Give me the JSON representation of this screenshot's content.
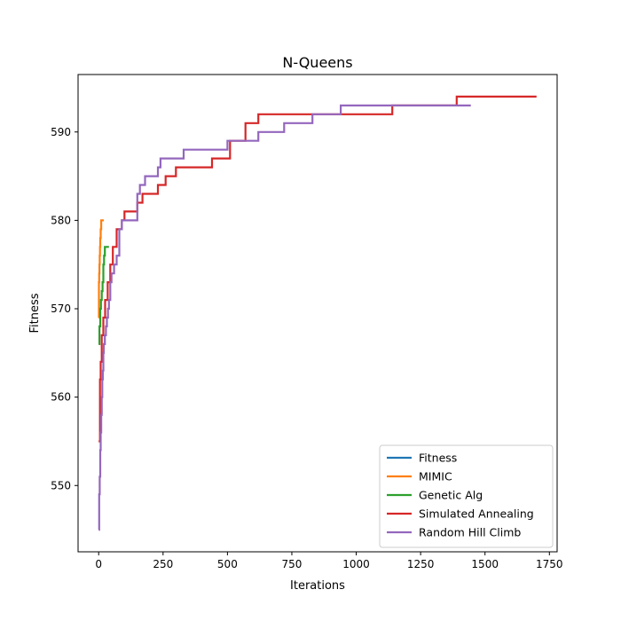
{
  "chart_data": {
    "type": "line",
    "title": "N-Queens",
    "xlabel": "Iterations",
    "ylabel": "Fitness",
    "xlim": [
      -80,
      1780
    ],
    "ylim": [
      542.5,
      596.5
    ],
    "xticks": [
      0,
      250,
      500,
      750,
      1000,
      1250,
      1500,
      1750
    ],
    "yticks": [
      550,
      560,
      570,
      580,
      590
    ],
    "grid": false,
    "legend_position": "lower-right",
    "series": [
      {
        "name": "Fitness",
        "color": "#1f77b4",
        "x": [],
        "y": []
      },
      {
        "name": "MIMIC",
        "color": "#ff7f0e",
        "x": [
          0,
          1,
          2,
          3,
          4,
          5,
          6,
          7,
          8,
          9,
          10,
          11,
          12,
          13,
          14,
          15,
          16,
          17,
          18,
          19,
          20
        ],
        "y": [
          569,
          573,
          574,
          575,
          576,
          577,
          578,
          578,
          579,
          579,
          580,
          580,
          580,
          580,
          580,
          580,
          580,
          580,
          580,
          580,
          580
        ]
      },
      {
        "name": "Genetic Alg",
        "color": "#2ca02c",
        "x": [
          0,
          3,
          6,
          9,
          12,
          15,
          18,
          21,
          24,
          27,
          30,
          33,
          36,
          40
        ],
        "y": [
          566,
          568,
          570,
          571,
          572,
          573,
          575,
          576,
          577,
          577,
          577,
          577,
          577,
          577
        ]
      },
      {
        "name": "Simulated Annealing",
        "color": "#d62728",
        "x": [
          0,
          5,
          8,
          12,
          18,
          25,
          35,
          45,
          55,
          70,
          90,
          100,
          150,
          170,
          230,
          260,
          300,
          440,
          510,
          570,
          620,
          1140,
          1390,
          1700
        ],
        "y": [
          555,
          562,
          564,
          567,
          569,
          571,
          573,
          575,
          577,
          579,
          580,
          581,
          582,
          583,
          584,
          585,
          586,
          587,
          589,
          591,
          592,
          593,
          594,
          594
        ]
      },
      {
        "name": "Random Hill Climb",
        "color": "#9467bd",
        "x": [
          0,
          2,
          4,
          6,
          8,
          10,
          12,
          14,
          16,
          18,
          20,
          24,
          28,
          32,
          36,
          40,
          45,
          50,
          60,
          70,
          80,
          90,
          100,
          130,
          150,
          160,
          180,
          200,
          230,
          240,
          260,
          300,
          330,
          400,
          500,
          600,
          620,
          680,
          720,
          760,
          830,
          940,
          1200,
          1445
        ],
        "y": [
          545,
          549,
          551,
          554,
          556,
          558,
          560,
          562,
          563,
          565,
          566,
          567,
          568,
          569,
          570,
          571,
          573,
          574,
          575,
          576,
          579,
          580,
          580,
          580,
          583,
          584,
          585,
          585,
          586,
          587,
          587,
          587,
          588,
          588,
          589,
          589,
          590,
          590,
          591,
          591,
          592,
          593,
          593,
          593
        ]
      }
    ]
  }
}
